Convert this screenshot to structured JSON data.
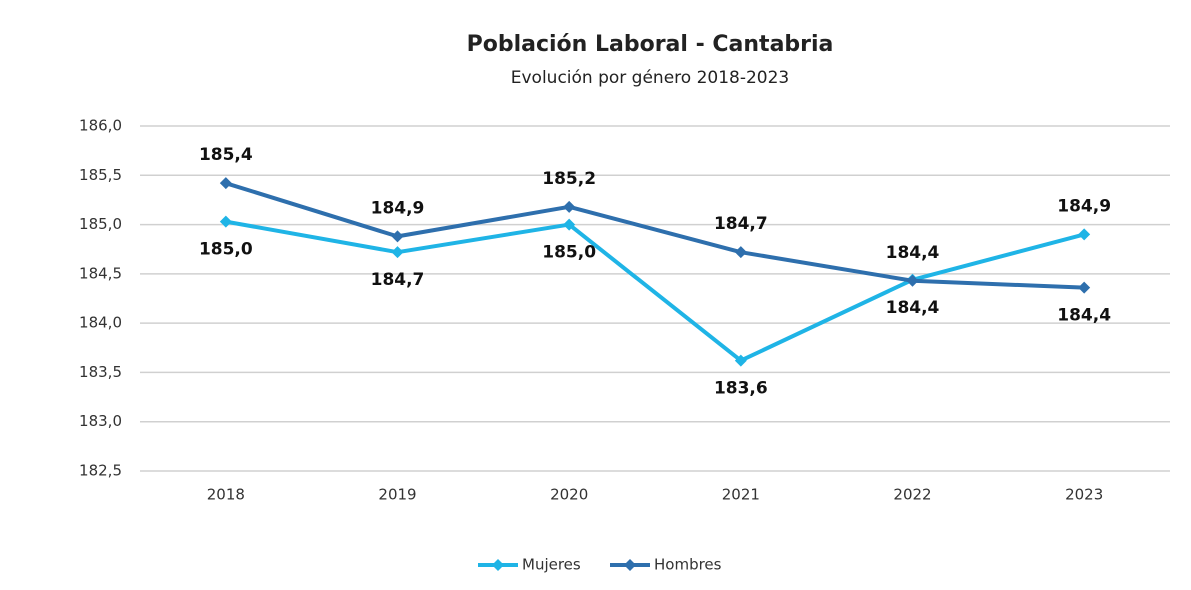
{
  "chart_data": {
    "type": "line",
    "title": "Población Laboral - Cantabria",
    "subtitle": "Evolución por género 2018-2023",
    "categories": [
      "2018",
      "2019",
      "2020",
      "2021",
      "2022",
      "2023"
    ],
    "series": [
      {
        "name": "Mujeres",
        "color": "#1fb4e6",
        "values": [
          185.03,
          184.72,
          185.0,
          183.62,
          184.44,
          184.9
        ],
        "value_labels": [
          "185,0",
          "184,7",
          "185,0",
          "183,6",
          "184,4",
          "184,9"
        ]
      },
      {
        "name": "Hombres",
        "color": "#2e6fad",
        "values": [
          185.42,
          184.88,
          185.18,
          184.72,
          184.43,
          184.36
        ],
        "value_labels": [
          "185,4",
          "184,9",
          "185,2",
          "184,7",
          "184,4",
          "184,4"
        ]
      }
    ],
    "ylim": [
      182.5,
      186.0
    ],
    "yticks": [
      {
        "value": 182.5,
        "label": "182,5"
      },
      {
        "value": 183.0,
        "label": "183,0"
      },
      {
        "value": 183.5,
        "label": "183,5"
      },
      {
        "value": 184.0,
        "label": "184,0"
      },
      {
        "value": 184.5,
        "label": "184,5"
      },
      {
        "value": 185.0,
        "label": "185,0"
      },
      {
        "value": 185.5,
        "label": "185,5"
      },
      {
        "value": 186.0,
        "label": "186,0"
      }
    ],
    "grid": true,
    "legend": "bottom"
  }
}
